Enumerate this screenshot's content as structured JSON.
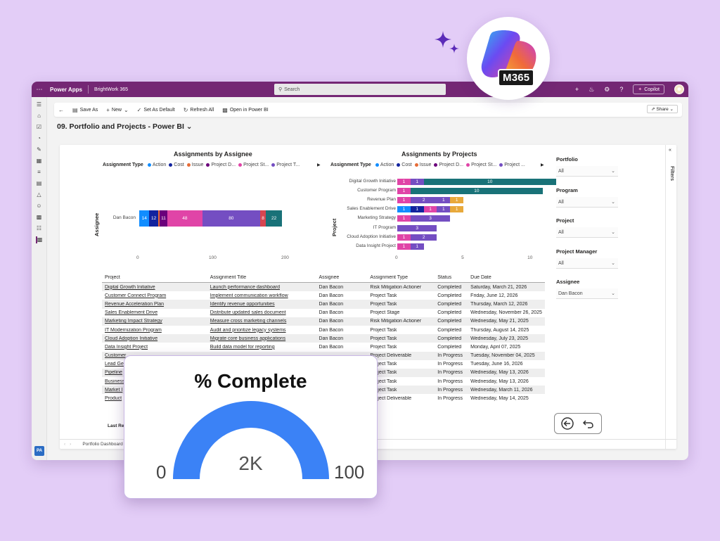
{
  "app": {
    "name": "Power Apps",
    "environment": "BrightWork 365",
    "search_placeholder": "Search",
    "copilot_label": "Copilot",
    "logo_text": "M365",
    "nav_badge": "PA"
  },
  "commands": {
    "save_as": "Save As",
    "new": "New",
    "set_default": "Set As Default",
    "refresh": "Refresh All",
    "open_pbi": "Open in Power BI",
    "share": "Share"
  },
  "page": {
    "title": "09. Portfolio and Projects - Power BI"
  },
  "legend": {
    "label": "Assignment Type",
    "items": [
      {
        "name": "Action",
        "color": "#118DFF"
      },
      {
        "name": "Cost",
        "color": "#12239E"
      },
      {
        "name": "Issue",
        "color": "#E66C37"
      },
      {
        "name": "Project D...",
        "color": "#6B007B"
      },
      {
        "name": "Project St...",
        "color": "#E044A7"
      },
      {
        "name": "Project T...",
        "color": "#744EC2"
      }
    ],
    "items_right": [
      {
        "name": "Action",
        "color": "#118DFF"
      },
      {
        "name": "Cost",
        "color": "#12239E"
      },
      {
        "name": "Issue",
        "color": "#E66C37"
      },
      {
        "name": "Project D...",
        "color": "#6B007B"
      },
      {
        "name": "Project St...",
        "color": "#E044A7"
      },
      {
        "name": "Project ...",
        "color": "#744EC2"
      }
    ]
  },
  "chart_data": [
    {
      "type": "bar",
      "orientation": "horizontal-stacked",
      "title": "Assignments by Assignee",
      "ylabel": "Assignee",
      "categories": [
        "Dan Bacon"
      ],
      "xlim": [
        0,
        200
      ],
      "xticks": [
        "0",
        "100",
        "200"
      ],
      "series": [
        {
          "name": "Action",
          "color": "#118DFF",
          "values": [
            14
          ]
        },
        {
          "name": "Cost",
          "color": "#12239E",
          "values": [
            12
          ]
        },
        {
          "name": "Issue",
          "color": "#E66C37",
          "values": [
            2
          ]
        },
        {
          "name": "Project D...",
          "color": "#6B007B",
          "values": [
            11
          ]
        },
        {
          "name": "Project St...",
          "color": "#E044A7",
          "values": [
            48
          ]
        },
        {
          "name": "Project T...",
          "color": "#744EC2",
          "values": [
            80
          ]
        },
        {
          "name": "",
          "color": "#D64550",
          "values": [
            8
          ]
        },
        {
          "name": "",
          "color": "#197278",
          "values": [
            22
          ]
        }
      ],
      "labels": [
        "14",
        "12",
        "",
        "11",
        "48",
        "80",
        "8",
        "22"
      ]
    },
    {
      "type": "bar",
      "orientation": "horizontal-stacked",
      "title": "Assignments by Projects",
      "ylabel": "Project",
      "categories": [
        "Digital Growth Initiative",
        "Customer Program",
        "Revenue  Plan",
        "Sales Enablement Drive",
        "Marketing Strategy",
        "IT Program",
        "Cloud Adoption Initiative",
        "Data Insight Project"
      ],
      "xlim": [
        0,
        11
      ],
      "xticks": [
        "0",
        "5",
        "10"
      ],
      "rows": [
        [
          {
            "c": "#E044A7",
            "v": 1,
            "l": "1"
          },
          {
            "c": "#744EC2",
            "v": 1,
            "l": "1"
          },
          {
            "c": "#197278",
            "v": 10,
            "l": "10"
          }
        ],
        [
          {
            "c": "#E044A7",
            "v": 1,
            "l": "1"
          },
          {
            "c": "#197278",
            "v": 10,
            "l": "10"
          }
        ],
        [
          {
            "c": "#E044A7",
            "v": 1,
            "l": "1"
          },
          {
            "c": "#744EC2",
            "v": 2,
            "l": "2"
          },
          {
            "c": "#744EC2",
            "v": 1,
            "l": "1"
          },
          {
            "c": "#E8A93B",
            "v": 1,
            "l": "1"
          }
        ],
        [
          {
            "c": "#118DFF",
            "v": 1,
            "l": "1"
          },
          {
            "c": "#12239E",
            "v": 1,
            "l": "1"
          },
          {
            "c": "#E044A7",
            "v": 1,
            "l": "1"
          },
          {
            "c": "#744EC2",
            "v": 1,
            "l": "1"
          },
          {
            "c": "#E8A93B",
            "v": 1,
            "l": "1"
          }
        ],
        [
          {
            "c": "#E044A7",
            "v": 1,
            "l": "1"
          },
          {
            "c": "#744EC2",
            "v": 3,
            "l": "3"
          }
        ],
        [
          {
            "c": "#744EC2",
            "v": 3,
            "l": "3"
          }
        ],
        [
          {
            "c": "#E044A7",
            "v": 1,
            "l": "1"
          },
          {
            "c": "#744EC2",
            "v": 2,
            "l": "2"
          }
        ],
        [
          {
            "c": "#E044A7",
            "v": 1,
            "l": "1"
          },
          {
            "c": "#744EC2",
            "v": 1,
            "l": "1"
          }
        ]
      ]
    },
    {
      "type": "gauge",
      "title": "% Complete",
      "min": "0",
      "max": "100",
      "value_label": "2K"
    }
  ],
  "table": {
    "headers": [
      "Project",
      "Assignment Title",
      "Assignee",
      "Assignment Type",
      "Status",
      "Due Date"
    ],
    "rows": [
      [
        "Digital Growth Initiative",
        "Launch performance dashboard",
        "Dan Bacon",
        "Risk Mitigation Actioner",
        "Completed",
        "Saturday, March 21, 2026"
      ],
      [
        "Customer Connect Program",
        "Implement communication workflow",
        "Dan Bacon",
        "Project Task",
        "Completed",
        "Friday, June 12, 2026"
      ],
      [
        "Revenue Acceleration Plan",
        "Identify revenue opportunities",
        "Dan Bacon",
        "Project Task",
        "Completed",
        "Thursday, March 12, 2026"
      ],
      [
        "Sales Enablement Drive",
        "Distribute updated sales document",
        "Dan Bacon",
        "Project Stage",
        "Completed",
        "Wednesday, November 26, 2025"
      ],
      [
        "Marketing Impact Strategy",
        "Measure cross marketing channels",
        "Dan Bacon",
        "Risk Mitigation Actioner",
        "Completed",
        "Wednesday, May 21, 2025"
      ],
      [
        "IT Modernization Program",
        "Audit and prioritize legacy systems",
        "Dan Bacon",
        "Project Task",
        "Completed",
        "Thursday, August 14, 2025"
      ],
      [
        "Cloud Adoption Initiative",
        "Migrate core business applications",
        "Dan Bacon",
        "Project Task",
        "Completed",
        "Wednesday, July 23, 2025"
      ],
      [
        "Data Insight Project",
        "Build data model for reporting",
        "Dan Bacon",
        "Project Task",
        "Completed",
        "Monday, April 07, 2025"
      ],
      [
        "Customer",
        "",
        "",
        "Project Deliverable",
        "In Progress",
        "Tuesday, November 04, 2025"
      ],
      [
        "Lead Ge",
        "",
        "",
        "Project Task",
        "In Progress",
        "Tuesday, June 16, 2026"
      ],
      [
        "Pipeline",
        "",
        "",
        "Project Task",
        "In Progress",
        "Wednesday, May 13, 2026"
      ],
      [
        "Business",
        "",
        "",
        "Project Task",
        "In Progress",
        "Wednesday, May 13, 2026"
      ],
      [
        "Market I",
        "",
        "",
        "Project Task",
        "In Progress",
        "Wednesday, March 11, 2026"
      ],
      [
        "Product",
        "",
        "",
        "Project Deliverable",
        "In Progress",
        "Wednesday, May 14, 2025"
      ]
    ]
  },
  "last_refresh": "Last Re",
  "bottom_tab": "Portfolio Dashboard",
  "filters": {
    "pane_label": "Filters",
    "items": [
      {
        "label": "Portfolio",
        "value": "All"
      },
      {
        "label": "Program",
        "value": "All"
      },
      {
        "label": "Project",
        "value": "All"
      },
      {
        "label": "Project Manager",
        "value": "All"
      },
      {
        "label": "Assignee",
        "value": "Dan Bacon"
      }
    ]
  }
}
